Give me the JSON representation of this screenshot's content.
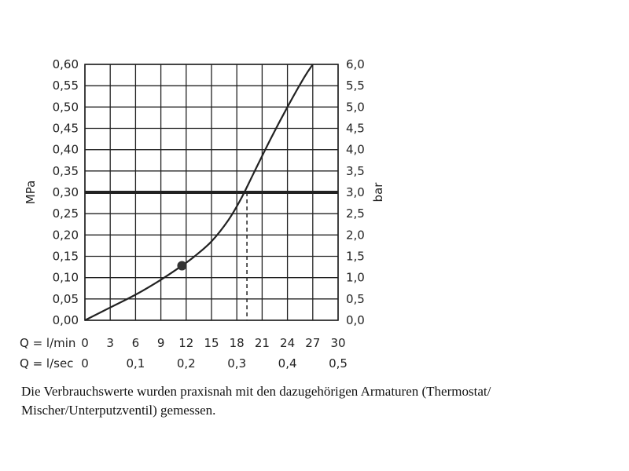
{
  "chart_data": {
    "type": "line",
    "xlabel_rows": [
      {
        "label": "Q = l/min",
        "ticks": [
          "0",
          "3",
          "6",
          "9",
          "12",
          "15",
          "18",
          "21",
          "24",
          "27",
          "30"
        ]
      },
      {
        "label": "Q = l/sec",
        "ticks": [
          "0",
          "0,1",
          "0,2",
          "0,3",
          "0,4",
          "0,5"
        ]
      }
    ],
    "xlim": [
      0,
      30
    ],
    "ylabel_left": "MPa",
    "ylabel_right": "bar",
    "ylim": [
      0,
      0.6
    ],
    "y_ticks_left": [
      "0,00",
      "0,05",
      "0,10",
      "0,15",
      "0,20",
      "0,25",
      "0,30",
      "0,35",
      "0,40",
      "0,45",
      "0,50",
      "0,55",
      "0,60"
    ],
    "y_ticks_right": [
      "0,0",
      "0,5",
      "1,0",
      "1,5",
      "2,0",
      "2,5",
      "3,0",
      "3,5",
      "4,0",
      "4,5",
      "5,0",
      "5,5",
      "6,0"
    ],
    "grid": true,
    "series": [
      {
        "x": [
          0,
          3,
          6,
          9,
          11.5,
          13,
          15,
          17,
          18.5,
          20,
          22,
          24,
          26,
          27
        ],
        "y": [
          0,
          0.03,
          0.06,
          0.095,
          0.128,
          0.15,
          0.185,
          0.235,
          0.285,
          0.345,
          0.425,
          0.5,
          0.57,
          0.6
        ]
      }
    ],
    "reference_line_y": 0.3,
    "reference_drop_x": 19.2,
    "marker": {
      "x": 11.5,
      "y": 0.128
    }
  },
  "caption": "Die Verbrauchswerte wurden praxisnah mit den dazugehörigen Armaturen (Thermostat/ Mischer/Unterputzventil) gemessen."
}
